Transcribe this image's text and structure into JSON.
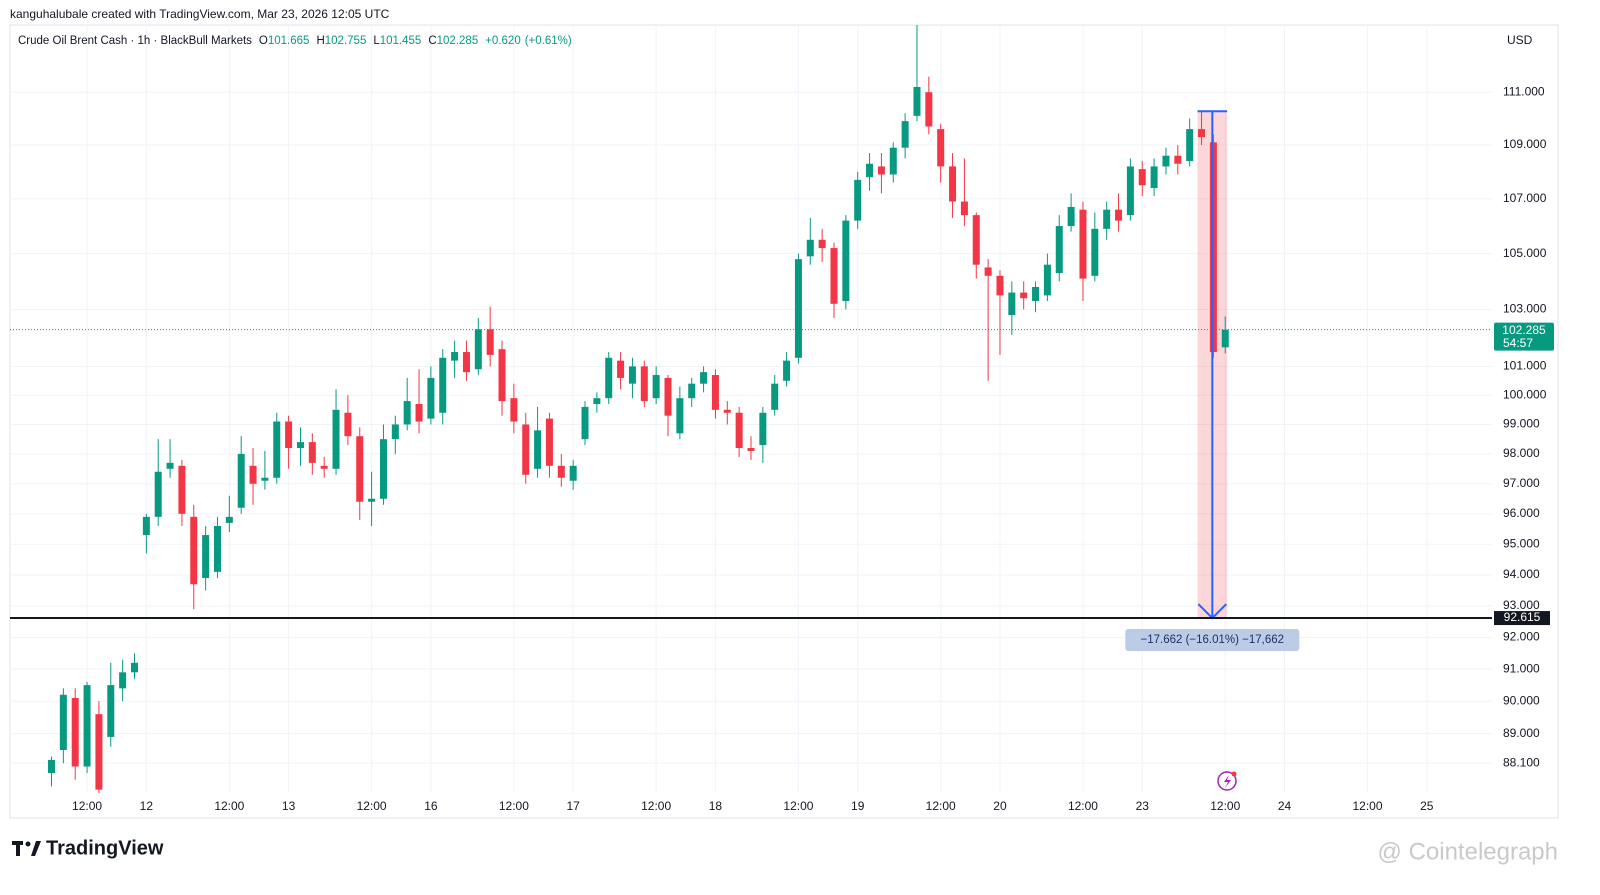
{
  "chart_data": {
    "type": "candlestick",
    "attribution": "kanguhalubale created with TradingView.com, Mar 23, 2026 12:05 UTC",
    "symbol": "Crude Oil Brent Cash · 1h · BlackBull Markets",
    "ohlc_header": [
      {
        "label": "O",
        "value": 101.665
      },
      {
        "label": "H",
        "value": 102.755
      },
      {
        "label": "L",
        "value": 101.455
      },
      {
        "label": "C",
        "value": 102.285
      }
    ],
    "change": "+0.620",
    "change_pct": "(+0.61%)",
    "currency": "USD",
    "up_color": "#089981",
    "down_color": "#f23645",
    "log_scale": true,
    "grid": true,
    "ylim": [
      87.2,
      113.6
    ],
    "yticks": [
      {
        "value": 111,
        "label": "111.000"
      },
      {
        "value": 109,
        "label": "109.000"
      },
      {
        "value": 107,
        "label": "107.000"
      },
      {
        "value": 105,
        "label": "105.000"
      },
      {
        "value": 103,
        "label": "103.000"
      },
      {
        "value": 101,
        "label": "101.000"
      },
      {
        "value": 100,
        "label": "100.000"
      },
      {
        "value": 99,
        "label": "99.000"
      },
      {
        "value": 98,
        "label": "98.000"
      },
      {
        "value": 97,
        "label": "97.000"
      },
      {
        "value": 96,
        "label": "96.000"
      },
      {
        "value": 95,
        "label": "95.000"
      },
      {
        "value": 94,
        "label": "94.000"
      },
      {
        "value": 93,
        "label": "93.000"
      },
      {
        "value": 92,
        "label": "92.000"
      },
      {
        "value": 91,
        "label": "91.000"
      },
      {
        "value": 90,
        "label": "90.000"
      },
      {
        "value": 89,
        "label": "89.000"
      },
      {
        "value": 88.1,
        "label": "88.100"
      }
    ],
    "categories": [
      null,
      null,
      null,
      null,
      null,
      null,
      "12:00",
      null,
      null,
      null,
      null,
      "12",
      null,
      null,
      null,
      null,
      null,
      null,
      "12:00",
      null,
      null,
      null,
      null,
      "13",
      null,
      null,
      null,
      null,
      null,
      null,
      "12:00",
      null,
      null,
      null,
      null,
      "16",
      null,
      null,
      null,
      null,
      null,
      null,
      "12:00",
      null,
      null,
      null,
      null,
      "17",
      null,
      null,
      null,
      null,
      null,
      null,
      "12:00",
      null,
      null,
      null,
      null,
      "18",
      null,
      null,
      null,
      null,
      null,
      null,
      "12:00",
      null,
      null,
      null,
      null,
      "19",
      null,
      null,
      null,
      null,
      null,
      null,
      "12:00",
      null,
      null,
      null,
      null,
      "20",
      null,
      null,
      null,
      null,
      null,
      null,
      "12:00",
      null,
      null,
      null,
      null,
      "23",
      null,
      null,
      null,
      null,
      null,
      null,
      "12:00",
      null,
      null,
      null,
      null,
      "24",
      null,
      null,
      null,
      null,
      null,
      null,
      "12:00",
      null,
      null,
      null,
      null,
      "25",
      null,
      null,
      null,
      null,
      null
    ],
    "candles": [
      null,
      null,
      null,
      {
        "o": 87.8,
        "h": 88.3,
        "l": 87.4,
        "c": 88.2
      },
      {
        "o": 88.5,
        "h": 90.4,
        "l": 88.1,
        "c": 90.2
      },
      {
        "o": 90.1,
        "h": 90.4,
        "l": 87.6,
        "c": 88.0
      },
      {
        "o": 88.0,
        "h": 90.6,
        "l": 87.8,
        "c": 90.5
      },
      {
        "o": 89.6,
        "h": 90.0,
        "l": 87.2,
        "c": 87.3
      },
      {
        "o": 88.9,
        "h": 91.2,
        "l": 88.6,
        "c": 90.5
      },
      {
        "o": 90.4,
        "h": 91.3,
        "l": 90.0,
        "c": 90.9
      },
      {
        "o": 90.9,
        "h": 91.5,
        "l": 90.7,
        "c": 91.2
      },
      {
        "o": 95.3,
        "h": 96.0,
        "l": 94.7,
        "c": 95.9
      },
      {
        "o": 95.9,
        "h": 98.5,
        "l": 95.6,
        "c": 97.4
      },
      {
        "o": 97.5,
        "h": 98.5,
        "l": 97.2,
        "c": 97.7
      },
      {
        "o": 97.6,
        "h": 97.8,
        "l": 95.6,
        "c": 96.0
      },
      {
        "o": 95.9,
        "h": 96.3,
        "l": 92.9,
        "c": 93.7
      },
      {
        "o": 93.9,
        "h": 95.6,
        "l": 93.5,
        "c": 95.3
      },
      {
        "o": 94.1,
        "h": 95.9,
        "l": 93.9,
        "c": 95.6
      },
      {
        "o": 95.7,
        "h": 96.6,
        "l": 95.4,
        "c": 95.9
      },
      {
        "o": 96.2,
        "h": 98.6,
        "l": 96.0,
        "c": 98.0
      },
      {
        "o": 97.6,
        "h": 98.2,
        "l": 96.3,
        "c": 97.0
      },
      {
        "o": 97.1,
        "h": 98.1,
        "l": 96.8,
        "c": 97.2
      },
      {
        "o": 97.2,
        "h": 99.4,
        "l": 97.0,
        "c": 99.1
      },
      {
        "o": 99.1,
        "h": 99.3,
        "l": 97.5,
        "c": 98.2
      },
      {
        "o": 98.2,
        "h": 98.9,
        "l": 97.6,
        "c": 98.4
      },
      {
        "o": 98.4,
        "h": 98.7,
        "l": 97.3,
        "c": 97.7
      },
      {
        "o": 97.6,
        "h": 97.9,
        "l": 97.2,
        "c": 97.5
      },
      {
        "o": 97.5,
        "h": 100.2,
        "l": 97.3,
        "c": 99.5
      },
      {
        "o": 99.4,
        "h": 100.0,
        "l": 98.3,
        "c": 98.6
      },
      {
        "o": 98.6,
        "h": 98.9,
        "l": 95.8,
        "c": 96.4
      },
      {
        "o": 96.4,
        "h": 97.4,
        "l": 95.6,
        "c": 96.5
      },
      {
        "o": 96.5,
        "h": 99.0,
        "l": 96.3,
        "c": 98.5
      },
      {
        "o": 98.5,
        "h": 99.3,
        "l": 98.0,
        "c": 99.0
      },
      {
        "o": 99.0,
        "h": 100.6,
        "l": 98.8,
        "c": 99.8
      },
      {
        "o": 99.7,
        "h": 100.9,
        "l": 98.7,
        "c": 99.1
      },
      {
        "o": 99.2,
        "h": 101.0,
        "l": 99.0,
        "c": 100.6
      },
      {
        "o": 99.4,
        "h": 101.6,
        "l": 99.0,
        "c": 101.3
      },
      {
        "o": 101.2,
        "h": 101.9,
        "l": 100.6,
        "c": 101.5
      },
      {
        "o": 101.5,
        "h": 101.9,
        "l": 100.5,
        "c": 100.8
      },
      {
        "o": 100.9,
        "h": 102.7,
        "l": 100.7,
        "c": 102.3
      },
      {
        "o": 102.3,
        "h": 103.1,
        "l": 101.0,
        "c": 101.4
      },
      {
        "o": 101.6,
        "h": 101.9,
        "l": 99.3,
        "c": 99.8
      },
      {
        "o": 99.9,
        "h": 100.4,
        "l": 98.7,
        "c": 99.1
      },
      {
        "o": 99.0,
        "h": 99.4,
        "l": 97.0,
        "c": 97.3
      },
      {
        "o": 97.5,
        "h": 99.6,
        "l": 97.2,
        "c": 98.8
      },
      {
        "o": 99.2,
        "h": 99.4,
        "l": 97.2,
        "c": 97.6
      },
      {
        "o": 97.6,
        "h": 98.0,
        "l": 96.9,
        "c": 97.2
      },
      {
        "o": 97.1,
        "h": 97.8,
        "l": 96.8,
        "c": 97.6
      },
      {
        "o": 98.5,
        "h": 99.8,
        "l": 98.3,
        "c": 99.6
      },
      {
        "o": 99.7,
        "h": 100.1,
        "l": 99.4,
        "c": 99.9
      },
      {
        "o": 99.9,
        "h": 101.5,
        "l": 99.7,
        "c": 101.3
      },
      {
        "o": 101.2,
        "h": 101.5,
        "l": 100.2,
        "c": 100.6
      },
      {
        "o": 100.4,
        "h": 101.3,
        "l": 99.9,
        "c": 101.0
      },
      {
        "o": 101.0,
        "h": 101.2,
        "l": 99.6,
        "c": 99.8
      },
      {
        "o": 99.9,
        "h": 101.0,
        "l": 99.7,
        "c": 100.7
      },
      {
        "o": 100.6,
        "h": 100.7,
        "l": 98.6,
        "c": 99.3
      },
      {
        "o": 98.7,
        "h": 100.3,
        "l": 98.5,
        "c": 99.9
      },
      {
        "o": 99.9,
        "h": 100.6,
        "l": 99.6,
        "c": 100.4
      },
      {
        "o": 100.4,
        "h": 101.0,
        "l": 100.1,
        "c": 100.8
      },
      {
        "o": 100.7,
        "h": 100.9,
        "l": 99.2,
        "c": 99.5
      },
      {
        "o": 99.5,
        "h": 99.8,
        "l": 99.0,
        "c": 99.4
      },
      {
        "o": 99.4,
        "h": 99.6,
        "l": 97.9,
        "c": 98.2
      },
      {
        "o": 98.2,
        "h": 98.6,
        "l": 97.8,
        "c": 98.1
      },
      {
        "o": 98.3,
        "h": 99.6,
        "l": 97.7,
        "c": 99.4
      },
      {
        "o": 99.5,
        "h": 100.7,
        "l": 99.3,
        "c": 100.4
      },
      {
        "o": 100.5,
        "h": 101.5,
        "l": 100.3,
        "c": 101.2
      },
      {
        "o": 101.3,
        "h": 105.0,
        "l": 101.1,
        "c": 104.8
      },
      {
        "o": 104.9,
        "h": 106.3,
        "l": 104.6,
        "c": 105.5
      },
      {
        "o": 105.5,
        "h": 105.9,
        "l": 104.7,
        "c": 105.2
      },
      {
        "o": 105.2,
        "h": 105.4,
        "l": 102.7,
        "c": 103.2
      },
      {
        "o": 103.3,
        "h": 106.4,
        "l": 103.0,
        "c": 106.2
      },
      {
        "o": 106.2,
        "h": 108.0,
        "l": 105.9,
        "c": 107.7
      },
      {
        "o": 107.8,
        "h": 108.7,
        "l": 107.3,
        "c": 108.3
      },
      {
        "o": 108.2,
        "h": 108.7,
        "l": 107.2,
        "c": 107.9
      },
      {
        "o": 107.9,
        "h": 109.1,
        "l": 107.6,
        "c": 108.9
      },
      {
        "o": 108.9,
        "h": 110.2,
        "l": 108.5,
        "c": 109.9
      },
      {
        "o": 110.1,
        "h": 113.6,
        "l": 109.9,
        "c": 111.2
      },
      {
        "o": 111.0,
        "h": 111.6,
        "l": 109.4,
        "c": 109.7
      },
      {
        "o": 109.6,
        "h": 109.8,
        "l": 107.6,
        "c": 108.2
      },
      {
        "o": 108.2,
        "h": 108.7,
        "l": 106.3,
        "c": 106.9
      },
      {
        "o": 106.9,
        "h": 108.5,
        "l": 106.0,
        "c": 106.4
      },
      {
        "o": 106.4,
        "h": 106.5,
        "l": 104.1,
        "c": 104.6
      },
      {
        "o": 104.5,
        "h": 104.8,
        "l": 100.5,
        "c": 104.2
      },
      {
        "o": 104.2,
        "h": 104.4,
        "l": 101.4,
        "c": 103.5
      },
      {
        "o": 102.8,
        "h": 104.0,
        "l": 102.1,
        "c": 103.6
      },
      {
        "o": 103.6,
        "h": 104.0,
        "l": 103.0,
        "c": 103.4
      },
      {
        "o": 103.3,
        "h": 104.0,
        "l": 102.9,
        "c": 103.8
      },
      {
        "o": 103.5,
        "h": 105.0,
        "l": 103.3,
        "c": 104.6
      },
      {
        "o": 104.3,
        "h": 106.4,
        "l": 104.0,
        "c": 106.0
      },
      {
        "o": 106.0,
        "h": 107.2,
        "l": 105.8,
        "c": 106.7
      },
      {
        "o": 106.6,
        "h": 106.9,
        "l": 103.3,
        "c": 104.1
      },
      {
        "o": 104.2,
        "h": 106.5,
        "l": 104.0,
        "c": 105.9
      },
      {
        "o": 105.9,
        "h": 106.9,
        "l": 105.5,
        "c": 106.6
      },
      {
        "o": 106.6,
        "h": 107.2,
        "l": 105.8,
        "c": 106.2
      },
      {
        "o": 106.4,
        "h": 108.5,
        "l": 106.2,
        "c": 108.2
      },
      {
        "o": 108.1,
        "h": 108.4,
        "l": 107.1,
        "c": 107.5
      },
      {
        "o": 107.4,
        "h": 108.5,
        "l": 107.1,
        "c": 108.2
      },
      {
        "o": 108.2,
        "h": 108.9,
        "l": 107.9,
        "c": 108.6
      },
      {
        "o": 108.6,
        "h": 109.0,
        "l": 107.9,
        "c": 108.3
      },
      {
        "o": 108.4,
        "h": 110.0,
        "l": 108.2,
        "c": 109.6
      },
      {
        "o": 109.6,
        "h": 110.3,
        "l": 109.0,
        "c": 109.3
      },
      {
        "o": 109.1,
        "h": 109.4,
        "l": 101.3,
        "c": 101.5
      },
      {
        "o": 101.665,
        "h": 102.755,
        "l": 101.455,
        "c": 102.285
      },
      null,
      null,
      null,
      null,
      null,
      null,
      null,
      null,
      null,
      null,
      null,
      null,
      null,
      null,
      null,
      null,
      null,
      null,
      null,
      null,
      null,
      null
    ],
    "last_price": 102.285,
    "countdown": "54:57",
    "hline": 92.615,
    "measure": {
      "start": 110.277,
      "end": 92.615,
      "label": "−17.662 (−16.01%) −17,662"
    },
    "brand": "TradingView",
    "watermark": "@ Cointelegraph"
  }
}
